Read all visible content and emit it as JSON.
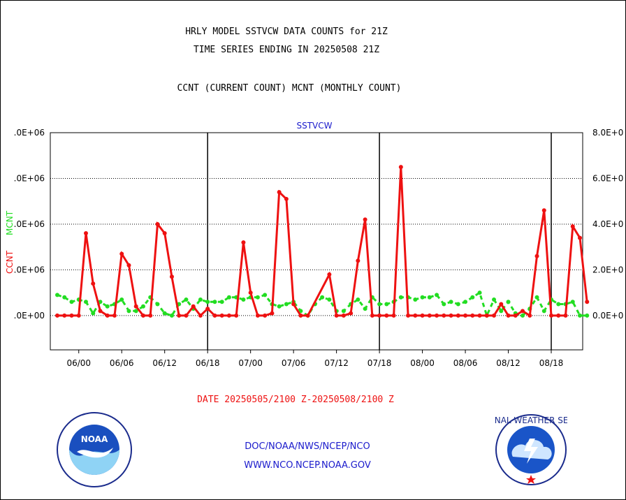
{
  "header": {
    "line1": "HRLY MODEL SSTVCW DATA COUNTS for 21Z",
    "line2": "TIME SERIES ENDING IN 20250508 21Z",
    "line3": "CCNT (CURRENT COUNT) MCNT (MONTHLY COUNT)"
  },
  "footer": {
    "date_range": "DATE 20250505/2100 Z-20250508/2100 Z",
    "org": "DOC/NOAA/NWS/NCEP/NCO",
    "url": "WWW.NCO.NCEP.NOAA.GOV",
    "noaa_logo_text": "NOAA",
    "nws_logo_text": "NATIONAL WEATHER SERVICE"
  },
  "colors": {
    "ccnt": "#ee1111",
    "mcnt": "#22dd22",
    "panel_title": "#1a1acc",
    "axis_text": "#000000"
  },
  "chart_data": {
    "type": "line",
    "title": "SSTVCW",
    "xlabel": "",
    "ylabel_left": "CCNT",
    "ylabel_right": "MCNT",
    "left_tick_labels": [
      ".0E+00",
      ".0E+06",
      ".0E+06",
      ".0E+06",
      ".0E+06"
    ],
    "right_tick_labels": [
      "0.0E+0",
      "2.0E+0",
      "4.0E+0",
      "6.0E+0",
      "8.0E+0"
    ],
    "left_tick_values": [
      0,
      2,
      4,
      6,
      8
    ],
    "ylim": [
      -1.5,
      8
    ],
    "xlim": [
      0,
      73
    ],
    "grid": "horizontal dotted",
    "x_tick_labels": [
      {
        "x": 3,
        "label": "06/00"
      },
      {
        "x": 9,
        "label": "06/06"
      },
      {
        "x": 15,
        "label": "06/12"
      },
      {
        "x": 21,
        "label": "06/18"
      },
      {
        "x": 27,
        "label": "07/00"
      },
      {
        "x": 33,
        "label": "07/06"
      },
      {
        "x": 39,
        "label": "07/12"
      },
      {
        "x": 45,
        "label": "07/18"
      },
      {
        "x": 51,
        "label": "08/00"
      },
      {
        "x": 57,
        "label": "08/06"
      },
      {
        "x": 63,
        "label": "08/12"
      },
      {
        "x": 69,
        "label": "08/18"
      }
    ],
    "day_boundaries": [
      21,
      45,
      69
    ],
    "series": [
      {
        "name": "CCNT",
        "color": "#ee1111",
        "style": "solid",
        "points": [
          [
            0,
            0
          ],
          [
            1,
            0
          ],
          [
            2,
            0
          ],
          [
            3,
            0
          ],
          [
            4,
            3.6
          ],
          [
            5,
            1.4
          ],
          [
            6,
            0.2
          ],
          [
            7,
            0
          ],
          [
            8,
            0
          ],
          [
            9,
            2.7
          ],
          [
            10,
            2.2
          ],
          [
            11,
            0.4
          ],
          [
            12,
            0
          ],
          [
            13,
            0
          ],
          [
            14,
            4.0
          ],
          [
            15,
            3.6
          ],
          [
            16,
            1.7
          ],
          [
            17,
            0
          ],
          [
            18,
            0
          ],
          [
            19,
            0.4
          ],
          [
            20,
            0
          ],
          [
            21,
            0.3
          ],
          [
            22,
            0
          ],
          [
            23,
            0
          ],
          [
            24,
            0
          ],
          [
            25,
            0
          ],
          [
            26,
            3.2
          ],
          [
            27,
            1.0
          ],
          [
            28,
            0
          ],
          [
            29,
            0
          ],
          [
            30,
            0.1
          ],
          [
            31,
            5.4
          ],
          [
            32,
            5.1
          ],
          [
            33,
            0.5
          ],
          [
            34,
            0
          ],
          [
            35,
            0
          ],
          [
            38,
            1.8
          ],
          [
            39,
            0
          ],
          [
            40,
            0
          ],
          [
            41,
            0.1
          ],
          [
            42,
            2.4
          ],
          [
            43,
            4.2
          ],
          [
            44,
            0
          ],
          [
            45,
            0
          ],
          [
            46,
            0
          ],
          [
            47,
            0
          ],
          [
            48,
            6.5
          ],
          [
            49,
            0
          ],
          [
            50,
            0
          ],
          [
            51,
            0
          ],
          [
            52,
            0
          ],
          [
            53,
            0
          ],
          [
            54,
            0
          ],
          [
            55,
            0
          ],
          [
            56,
            0
          ],
          [
            57,
            0
          ],
          [
            58,
            0
          ],
          [
            59,
            0
          ],
          [
            60,
            0
          ],
          [
            61,
            0
          ],
          [
            62,
            0.5
          ],
          [
            63,
            0
          ],
          [
            64,
            0
          ],
          [
            65,
            0.2
          ],
          [
            66,
            0
          ],
          [
            67,
            2.6
          ],
          [
            68,
            4.6
          ],
          [
            69,
            0
          ],
          [
            70,
            0
          ],
          [
            71,
            0
          ],
          [
            72,
            3.9
          ],
          [
            73,
            3.4
          ],
          [
            74,
            0.6
          ]
        ]
      },
      {
        "name": "MCNT",
        "color": "#22dd22",
        "style": "dashed",
        "points": [
          [
            0,
            0.9
          ],
          [
            1,
            0.8
          ],
          [
            2,
            0.6
          ],
          [
            3,
            0.7
          ],
          [
            4,
            0.6
          ],
          [
            5,
            0.1
          ],
          [
            6,
            0.6
          ],
          [
            7,
            0.4
          ],
          [
            8,
            0.5
          ],
          [
            9,
            0.7
          ],
          [
            10,
            0.2
          ],
          [
            11,
            0.2
          ],
          [
            12,
            0.4
          ],
          [
            13,
            0.8
          ],
          [
            14,
            0.5
          ],
          [
            15,
            0.1
          ],
          [
            16,
            0
          ],
          [
            17,
            0.5
          ],
          [
            18,
            0.7
          ],
          [
            19,
            0.3
          ],
          [
            20,
            0.7
          ],
          [
            21,
            0.6
          ],
          [
            22,
            0.6
          ],
          [
            23,
            0.6
          ],
          [
            24,
            0.8
          ],
          [
            25,
            0.8
          ],
          [
            26,
            0.7
          ],
          [
            27,
            0.8
          ],
          [
            28,
            0.8
          ],
          [
            29,
            0.9
          ],
          [
            30,
            0.5
          ],
          [
            31,
            0.4
          ],
          [
            32,
            0.5
          ],
          [
            33,
            0.6
          ],
          [
            34,
            0.2
          ],
          [
            35,
            0
          ],
          [
            36,
            0.5
          ],
          [
            37,
            0.8
          ],
          [
            38,
            0.7
          ],
          [
            39,
            0.2
          ],
          [
            40,
            0.2
          ],
          [
            41,
            0.5
          ],
          [
            42,
            0.7
          ],
          [
            43,
            0.3
          ],
          [
            44,
            0.8
          ],
          [
            45,
            0.5
          ],
          [
            46,
            0.5
          ],
          [
            47,
            0.6
          ],
          [
            48,
            0.8
          ],
          [
            49,
            0.8
          ],
          [
            50,
            0.7
          ],
          [
            51,
            0.8
          ],
          [
            52,
            0.8
          ],
          [
            53,
            0.9
          ],
          [
            54,
            0.5
          ],
          [
            55,
            0.6
          ],
          [
            56,
            0.5
          ],
          [
            57,
            0.6
          ],
          [
            58,
            0.8
          ],
          [
            59,
            1.0
          ],
          [
            60,
            0
          ],
          [
            61,
            0.7
          ],
          [
            62,
            0.2
          ],
          [
            63,
            0.6
          ],
          [
            64,
            0.1
          ],
          [
            65,
            0
          ],
          [
            66,
            0.3
          ],
          [
            67,
            0.8
          ],
          [
            68,
            0.2
          ],
          [
            69,
            0.7
          ],
          [
            70,
            0.5
          ],
          [
            71,
            0.5
          ],
          [
            72,
            0.6
          ],
          [
            73,
            0
          ],
          [
            74,
            0
          ]
        ]
      }
    ]
  }
}
